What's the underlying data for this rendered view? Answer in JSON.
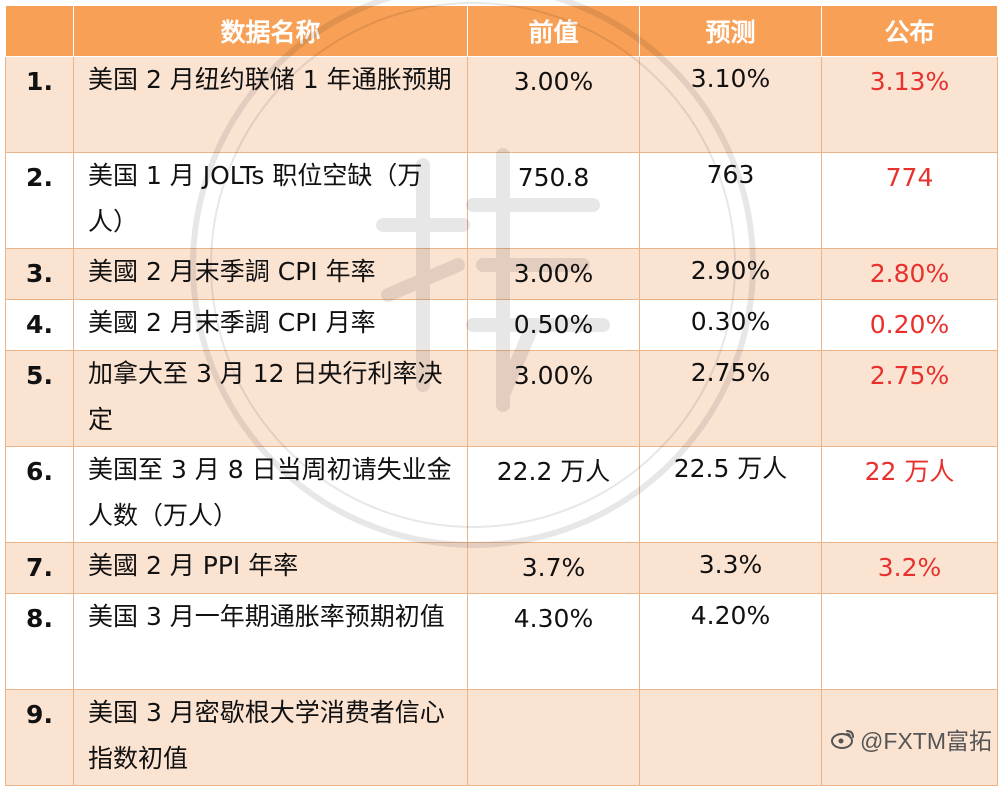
{
  "table": {
    "headers": {
      "name": "数据名称",
      "previous": "前值",
      "forecast": "预测",
      "actual": "公布"
    },
    "rows": [
      {
        "num": "1.",
        "name": "美国 2 月纽约联储 1 年通胀预期",
        "previous": "3.00%",
        "forecast": "3.10%",
        "actual": "3.13%"
      },
      {
        "num": "2.",
        "name": "美国 1 月 JOLTs 职位空缺（万人）",
        "previous": "750.8",
        "forecast": "763",
        "actual": "774"
      },
      {
        "num": "3.",
        "name": "美國 2 月末季調 CPI 年率",
        "previous": "3.00%",
        "forecast": "2.90%",
        "actual": "2.80%"
      },
      {
        "num": "4.",
        "name": "美國 2 月末季調 CPI 月率",
        "previous": "0.50%",
        "forecast": "0.30%",
        "actual": "0.20%"
      },
      {
        "num": "5.",
        "name": "加拿大至 3 月 12 日央行利率决定",
        "previous": "3.00%",
        "forecast": "2.75%",
        "actual": "2.75%"
      },
      {
        "num": "6.",
        "name": "美国至 3 月 8 日当周初请失业金人数（万人）",
        "previous": "22.2 万人",
        "forecast": "22.5 万人",
        "actual": "22 万人"
      },
      {
        "num": "7.",
        "name": "美國 2 月 PPI 年率",
        "previous": "3.7%",
        "forecast": "3.3%",
        "actual": "3.2%"
      },
      {
        "num": "8.",
        "name": "美国 3 月一年期通胀率预期初值",
        "previous": "4.30%",
        "forecast": "4.20%",
        "actual": ""
      },
      {
        "num": "9.",
        "name": "美国 3 月密歇根大学消费者信心指数初值",
        "previous": "",
        "forecast": "",
        "actual": ""
      }
    ]
  },
  "brand": {
    "icon": "weibo-icon",
    "label": "@FXTM富拓"
  },
  "colors": {
    "header_bg": "#f8a056",
    "row_shade": "#fbe3d2",
    "actual_text": "#e8302c"
  }
}
